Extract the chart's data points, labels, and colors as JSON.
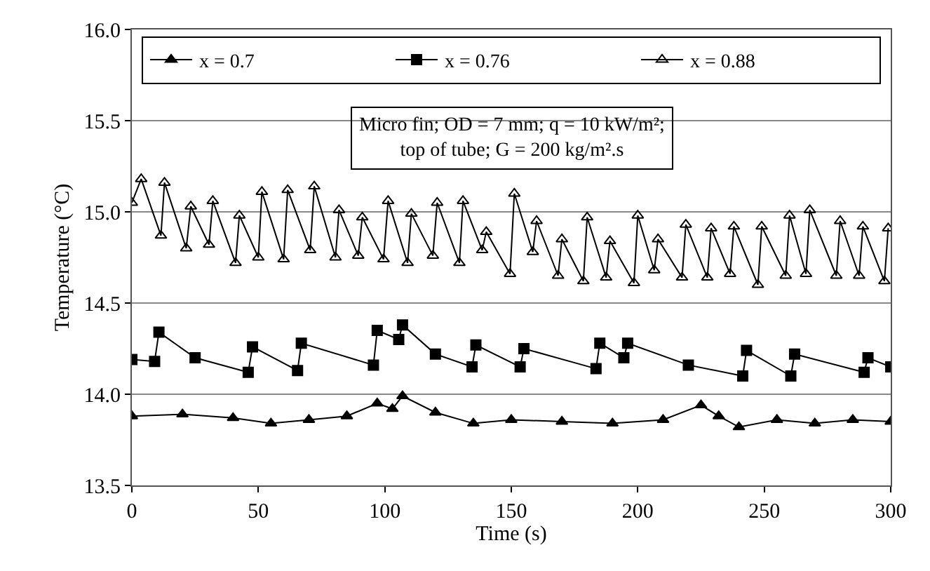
{
  "chart_data": {
    "type": "line",
    "xlabel": "Time (s)",
    "ylabel": "Temperature (°C)",
    "xlim": [
      0,
      300
    ],
    "xticks": [
      0,
      50,
      100,
      150,
      200,
      250,
      300
    ],
    "ylim": [
      13.5,
      16.0
    ],
    "yticks": [
      {
        "value": 13.5,
        "label": "13.5"
      },
      {
        "value": 14.0,
        "label": "14.0"
      },
      {
        "value": 14.5,
        "label": "14.5"
      },
      {
        "value": 15.0,
        "label": "15.0"
      },
      {
        "value": 15.5,
        "label": "15.5"
      },
      {
        "value": 16.0,
        "label": "16.0"
      }
    ],
    "grid": "y",
    "legend": "top",
    "annotations": [
      "Micro fin; OD = 7 mm; q = 10 kW/m²;\ntop of tube; G = 200 kg/m².s"
    ],
    "series": [
      {
        "name": "x = 0.7",
        "color": "#000000",
        "marker": "triangle",
        "x": [
          0,
          20,
          40,
          55,
          70,
          85,
          97,
          103,
          107,
          120,
          135,
          150,
          170,
          190,
          210,
          225,
          232,
          240,
          255,
          270,
          285,
          300
        ],
        "values": [
          13.88,
          13.89,
          13.87,
          13.84,
          13.86,
          13.88,
          13.95,
          13.92,
          13.99,
          13.9,
          13.84,
          13.86,
          13.85,
          13.84,
          13.86,
          13.94,
          13.88,
          13.82,
          13.86,
          13.84,
          13.86,
          13.85
        ]
      },
      {
        "name": "x = 0.76",
        "color": "#000000",
        "marker": "square",
        "x": [
          0,
          9,
          10.7,
          25,
          46,
          47.7,
          65.5,
          67,
          95.5,
          97,
          105.5,
          107,
          120,
          134.5,
          136,
          153.5,
          155,
          183.5,
          185,
          194.5,
          196,
          220,
          241.5,
          243,
          260.5,
          262,
          289.5,
          291,
          300
        ],
        "values": [
          14.19,
          14.18,
          14.34,
          14.2,
          14.12,
          14.26,
          14.13,
          14.28,
          14.16,
          14.35,
          14.3,
          14.38,
          14.22,
          14.15,
          14.27,
          14.15,
          14.25,
          14.14,
          14.28,
          14.2,
          14.28,
          14.16,
          14.1,
          14.24,
          14.1,
          14.22,
          14.12,
          14.2,
          14.15
        ]
      },
      {
        "name": "x = 0.88",
        "color": "#000000",
        "marker": "triangle-open",
        "x": [
          0,
          3.7,
          11.5,
          12.9,
          21.5,
          23.3,
          30.5,
          32,
          41,
          42.5,
          50,
          51.4,
          60,
          61.6,
          70.5,
          72.1,
          80.5,
          81.9,
          89.5,
          91.1,
          99.5,
          101.3,
          109,
          110.5,
          119,
          120.7,
          129.5,
          130.9,
          138.5,
          140.1,
          149.5,
          151.2,
          158.5,
          160,
          168.5,
          170,
          178.5,
          180,
          187.5,
          189,
          198.5,
          200,
          206.5,
          208,
          217.5,
          219,
          227.5,
          229,
          236.5,
          238,
          247.5,
          249,
          258.5,
          260,
          266.5,
          268,
          278.5,
          280,
          287.5,
          289,
          297.5,
          299
        ],
        "values": [
          15.05,
          15.18,
          14.87,
          15.16,
          14.8,
          15.03,
          14.82,
          15.06,
          14.72,
          14.98,
          14.75,
          15.11,
          14.74,
          15.12,
          14.79,
          15.14,
          14.75,
          15.01,
          14.76,
          14.97,
          14.74,
          15.06,
          14.72,
          14.99,
          14.76,
          15.05,
          14.72,
          15.06,
          14.79,
          14.89,
          14.66,
          15.1,
          14.78,
          14.95,
          14.65,
          14.85,
          14.62,
          14.97,
          14.64,
          14.84,
          14.61,
          14.98,
          14.68,
          14.85,
          14.64,
          14.93,
          14.64,
          14.91,
          14.66,
          14.92,
          14.6,
          14.92,
          14.65,
          14.98,
          14.66,
          15.01,
          14.65,
          14.95,
          14.65,
          14.92,
          14.62,
          14.91
        ]
      }
    ]
  }
}
